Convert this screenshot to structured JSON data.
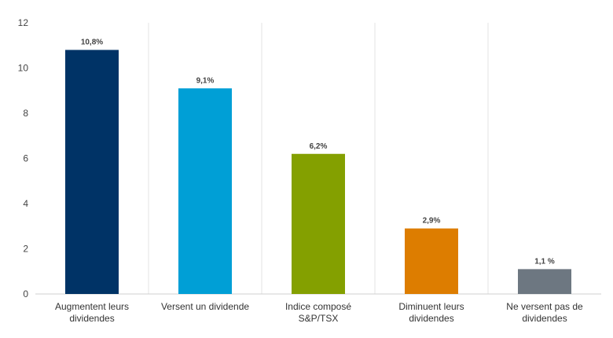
{
  "chart_data": {
    "type": "bar",
    "categories": [
      [
        "Augmentent leurs",
        "dividendes"
      ],
      [
        "Versent un dividende"
      ],
      [
        "Indice composé",
        "S&P/TSX"
      ],
      [
        "Diminuent leurs",
        "dividendes"
      ],
      [
        "Ne versent pas de",
        "dividendes"
      ]
    ],
    "values": [
      10.8,
      9.1,
      6.2,
      2.9,
      1.1
    ],
    "data_labels": [
      "10,8%",
      "9,1%",
      "6,2%",
      "2,9%",
      "1,1 %"
    ],
    "colors": [
      "#003366",
      "#009fd6",
      "#84a000",
      "#dd7d00",
      "#6d7781"
    ],
    "ylim": [
      0,
      12
    ],
    "yticks": [
      0,
      2,
      4,
      6,
      8,
      10,
      12
    ],
    "grid": "vertical-separators",
    "title": "",
    "xlabel": "",
    "ylabel": ""
  }
}
